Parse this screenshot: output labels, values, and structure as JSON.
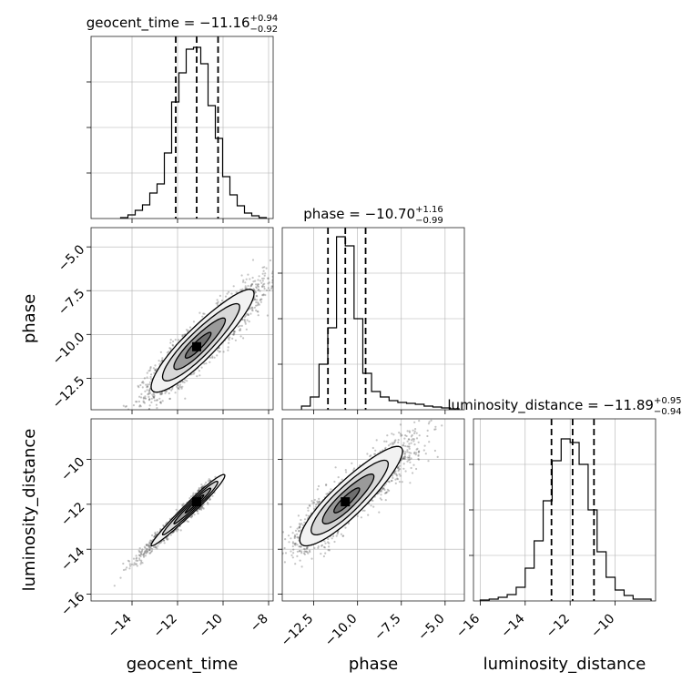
{
  "chart_data": {
    "type": "corner",
    "parameters": [
      "geocent_time",
      "phase",
      "luminosity_distance"
    ],
    "panels": [
      {
        "kind": "histogram",
        "parameter": "geocent_time",
        "title": {
          "label": "geocent_time",
          "median": "−11.16",
          "plus": "+0.94",
          "minus": "−0.92"
        },
        "xlim": [
          -15.8,
          -7.8
        ],
        "ylim": [
          0,
          1
        ],
        "bins": [
          -14.5,
          -14.18,
          -13.86,
          -13.54,
          -13.22,
          -12.9,
          -12.58,
          -12.26,
          -11.94,
          -11.62,
          -11.3,
          -10.98,
          -10.66,
          -10.34,
          -10.02,
          -9.7,
          -9.38,
          -9.06,
          -8.74,
          -8.42,
          -8.1
        ],
        "counts": [
          0.005,
          0.02,
          0.045,
          0.075,
          0.14,
          0.19,
          0.36,
          0.64,
          0.8,
          0.93,
          0.94,
          0.85,
          0.62,
          0.44,
          0.23,
          0.13,
          0.07,
          0.03,
          0.015,
          0.005
        ],
        "quantiles": [
          -12.08,
          -11.16,
          -10.22
        ]
      },
      {
        "kind": "histogram",
        "parameter": "phase",
        "title": {
          "label": "phase",
          "median": "−10.70",
          "plus": "+1.16",
          "minus": "−0.99"
        },
        "xlim": [
          -14.3,
          -3.9
        ],
        "ylim": [
          0,
          1
        ],
        "bins": [
          -13.2,
          -12.7,
          -12.2,
          -11.7,
          -11.2,
          -10.7,
          -10.2,
          -9.7,
          -9.2,
          -8.7,
          -8.2,
          -7.7,
          -7.2,
          -6.7,
          -6.2,
          -5.7,
          -5.2,
          -4.7,
          -4.2
        ],
        "counts": [
          0.02,
          0.07,
          0.25,
          0.45,
          0.95,
          0.9,
          0.5,
          0.2,
          0.1,
          0.07,
          0.05,
          0.04,
          0.035,
          0.03,
          0.02,
          0.015,
          0.01,
          0.005
        ],
        "quantiles": [
          -11.69,
          -10.7,
          -9.54
        ]
      },
      {
        "kind": "histogram",
        "parameter": "luminosity_distance",
        "title": {
          "label": "luminosity_distance",
          "median": "−11.89",
          "plus": "+0.95",
          "minus": "−0.94"
        },
        "xlim": [
          -16.3,
          -8.2
        ],
        "ylim": [
          0,
          1
        ],
        "bins": [
          -16.0,
          -15.6,
          -15.2,
          -14.8,
          -14.4,
          -14.0,
          -13.6,
          -13.2,
          -12.8,
          -12.4,
          -12.0,
          -11.6,
          -11.2,
          -10.8,
          -10.4,
          -10.0,
          -9.6,
          -9.2,
          -8.8,
          -8.4
        ],
        "counts": [
          0.005,
          0.01,
          0.02,
          0.035,
          0.075,
          0.18,
          0.33,
          0.55,
          0.77,
          0.89,
          0.87,
          0.75,
          0.5,
          0.27,
          0.13,
          0.06,
          0.03,
          0.01,
          0.01
        ],
        "quantiles": [
          -12.83,
          -11.89,
          -10.94
        ]
      },
      {
        "kind": "2d",
        "x": "geocent_time",
        "y": "phase",
        "xlim": [
          -15.8,
          -7.8
        ],
        "ylim": [
          -14.3,
          -3.9
        ],
        "mean": [
          -11.16,
          -10.7
        ],
        "sigma": [
          1.0,
          1.3
        ],
        "rho": 0.88,
        "skew": 1.5
      },
      {
        "kind": "2d",
        "x": "geocent_time",
        "y": "luminosity_distance",
        "xlim": [
          -15.8,
          -7.8
        ],
        "ylim": [
          -16.3,
          -8.2
        ],
        "mean": [
          -11.16,
          -11.89
        ],
        "sigma": [
          1.0,
          0.98
        ],
        "rho": 0.985,
        "skew": 0.3
      },
      {
        "kind": "2d",
        "x": "phase",
        "y": "luminosity_distance",
        "xlim": [
          -14.3,
          -3.9
        ],
        "ylim": [
          -16.3,
          -8.2
        ],
        "mean": [
          -10.7,
          -11.89
        ],
        "sigma": [
          1.3,
          0.98
        ],
        "rho": 0.86,
        "skew": 1.5
      }
    ],
    "ticks": {
      "geocent_time": [
        -14,
        -12,
        -10,
        -8
      ],
      "phase": [
        -12.5,
        -10.0,
        -7.5,
        -5.0
      ],
      "luminosity_distance": [
        -16,
        -14,
        -12,
        -10
      ]
    },
    "tick_labels": {
      "geocent_time": [
        "−14",
        "−12",
        "−10",
        "−8"
      ],
      "phase": [
        "−12.5",
        "−10.0",
        "−7.5",
        "−5.0"
      ],
      "luminosity_distance": [
        "−16",
        "−14",
        "−12",
        "−10"
      ]
    },
    "axis_labels": {
      "geocent_time": "geocent_time",
      "phase": "phase",
      "luminosity_distance": "luminosity_distance"
    },
    "contour_levels_sigma": [
      0.5,
      1.0,
      1.5,
      2.0
    ],
    "grid": true,
    "colors": {
      "line": "#000000",
      "scatter": "#555555",
      "grid": "#b0b0b0"
    }
  }
}
